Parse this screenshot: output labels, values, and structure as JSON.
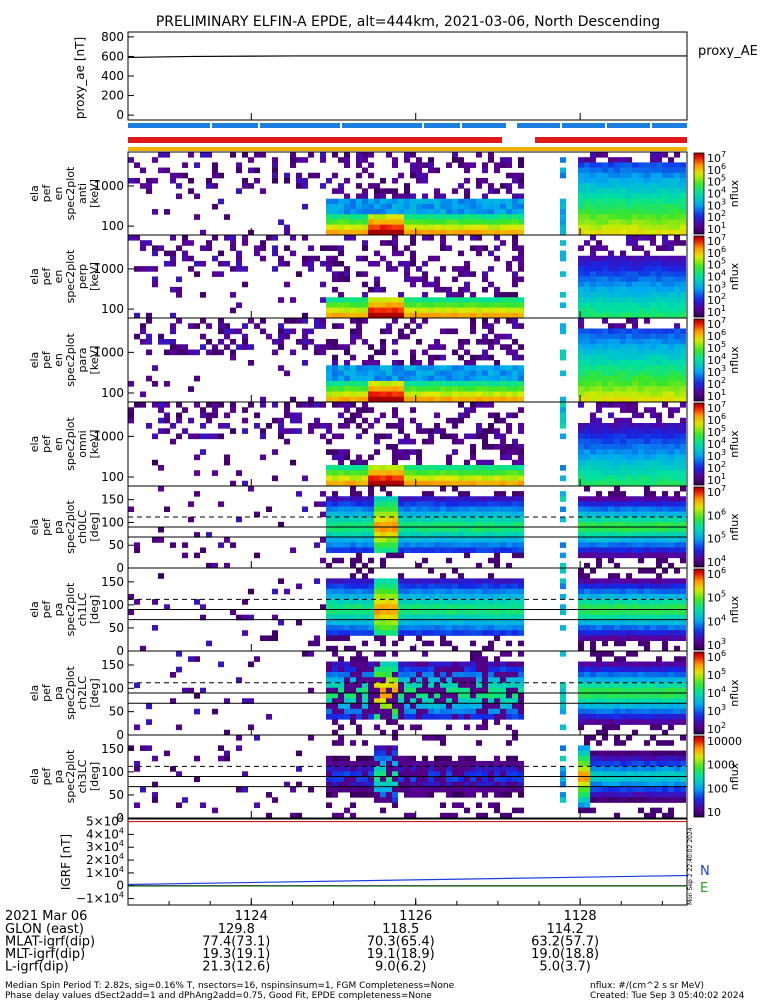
{
  "title": "PRELIMINARY ELFIN-A EPDE, alt=444km, 2021-03-06, North Descending",
  "colors": {
    "quality_bar_blue": "#1a7fe0",
    "quality_bar_red": "#e01a1a",
    "quality_bar_orange": "#f3b000",
    "igrf_n": "#1a3fe0",
    "igrf_e": "#1aa51a",
    "igrf_up": "#d01a1a"
  },
  "time_axis": {
    "date_label": "2021 Mar 06",
    "ticks": [
      "1124",
      "1126",
      "1128"
    ],
    "rows": [
      {
        "label": "GLON (east)",
        "values": [
          "129.8",
          "118.5",
          "114.2"
        ]
      },
      {
        "label": "MLAT-igrf(dip)",
        "values": [
          "77.4(73.1)",
          "70.3(65.4)",
          "63.2(57.7)"
        ]
      },
      {
        "label": "MLT-igrf(dip)",
        "values": [
          "19.3(19.1)",
          "19.1(18.9)",
          "19.0(18.8)"
        ]
      },
      {
        "label": "L-igrf(dip)",
        "values": [
          "21.3(12.6)",
          "9.0(6.2)",
          "5.0(3.7)"
        ]
      }
    ]
  },
  "footer": {
    "left_line1": "Median Spin Period T: 2.82s, sig=0.16% T, nsectors=16, nspinsinsum=1, FGM Completeness=None",
    "left_line2": "Phase delay values dSect2add=1 and dPhAng2add=0.75, Good Fit, EPDE completeness=None",
    "right_line1": "nflux: #/(cm^2 s sr MeV)",
    "right_line2": "Created: Tue Sep  3 05:40:02 2024"
  },
  "vertical_stamp": "Mon Sep  2 22:40:02 2024",
  "chart_data": [
    {
      "type": "line",
      "name": "proxy_ae",
      "ylabel": "proxy_ae [nT]",
      "legend": "proxy_AE",
      "yticks": [
        "800",
        "600",
        "400",
        "200",
        "0"
      ],
      "ylim": [
        -50,
        850
      ],
      "x": [
        1122.5,
        1123.3,
        1124.5,
        1126.0,
        1127.5,
        1129.3
      ],
      "values": [
        590,
        600,
        605,
        605,
        605,
        605
      ]
    },
    {
      "type": "heatmap",
      "ylabel": "ela pef en spec2plot anti [keV]",
      "yscale": "log",
      "yticks": [
        "1000",
        "100"
      ],
      "ylim": [
        60,
        7000
      ],
      "zlabel": "nflux",
      "ztick_exponents": [
        "10",
        "10",
        "10",
        "10",
        "10",
        "10",
        "10"
      ],
      "ztick_powers": [
        "7",
        "6",
        "5",
        "4",
        "3",
        "2",
        "1"
      ]
    },
    {
      "type": "heatmap",
      "ylabel": "ela pef en spec2plot perp [keV]",
      "yscale": "log",
      "yticks": [
        "1000",
        "100"
      ],
      "ylim": [
        60,
        7000
      ],
      "zlabel": "nflux",
      "ztick_exponents": [
        "10",
        "10",
        "10",
        "10",
        "10",
        "10",
        "10"
      ],
      "ztick_powers": [
        "7",
        "6",
        "5",
        "4",
        "3",
        "2",
        "1"
      ]
    },
    {
      "type": "heatmap",
      "ylabel": "ela pef en spec2plot para [keV]",
      "yscale": "log",
      "yticks": [
        "1000",
        "100"
      ],
      "ylim": [
        60,
        7000
      ],
      "zlabel": "nflux",
      "ztick_exponents": [
        "10",
        "10",
        "10",
        "10",
        "10",
        "10",
        "10"
      ],
      "ztick_powers": [
        "7",
        "6",
        "5",
        "4",
        "3",
        "2",
        "1"
      ]
    },
    {
      "type": "heatmap",
      "ylabel": "ela pef en spec2plot omni [keV]",
      "yscale": "log",
      "yticks": [
        "1000",
        "100"
      ],
      "ylim": [
        60,
        7000
      ],
      "zlabel": "nflux",
      "ztick_exponents": [
        "10",
        "10",
        "10",
        "10",
        "10",
        "10",
        "10"
      ],
      "ztick_powers": [
        "7",
        "6",
        "5",
        "4",
        "3",
        "2",
        "1"
      ]
    },
    {
      "type": "heatmap",
      "ylabel": "ela pef pa spec2plot ch0LC [deg]",
      "yticks": [
        "150",
        "100",
        "50",
        "0"
      ],
      "ylim": [
        0,
        180
      ],
      "zlabel": "nflux",
      "ztick_exponents": [
        "10",
        "10",
        "10",
        "10"
      ],
      "ztick_powers": [
        "7",
        "6",
        "5",
        "4"
      ]
    },
    {
      "type": "heatmap",
      "ylabel": "ela pef pa spec2plot ch1LC [deg]",
      "yticks": [
        "150",
        "100",
        "50",
        "0"
      ],
      "ylim": [
        0,
        180
      ],
      "zlabel": "nflux",
      "ztick_exponents": [
        "10",
        "10",
        "10",
        "10"
      ],
      "ztick_powers": [
        "6",
        "5",
        "4",
        "3"
      ]
    },
    {
      "type": "heatmap",
      "ylabel": "ela pef pa spec2plot ch2LC [deg]",
      "yticks": [
        "150",
        "100",
        "50",
        "0"
      ],
      "ylim": [
        0,
        180
      ],
      "zlabel": "nflux",
      "ztick_exponents": [
        "10",
        "10",
        "10",
        "10",
        "10"
      ],
      "ztick_powers": [
        "6",
        "5",
        "4",
        "3",
        "2"
      ]
    },
    {
      "type": "heatmap",
      "ylabel": "ela pef pa spec2plot ch3LC [deg]",
      "yticks": [
        "150",
        "100",
        "50",
        "0"
      ],
      "ylim": [
        0,
        180
      ],
      "zlabel": "nflux",
      "zticks_plain": [
        "10000",
        "1000",
        "100",
        "10"
      ]
    },
    {
      "type": "line",
      "name": "igrf",
      "ylabel": "IGRF [nT]",
      "yticks": [
        {
          "m": "5",
          "e": "4"
        },
        {
          "m": "4",
          "e": "4"
        },
        {
          "m": "3",
          "e": "4"
        },
        {
          "m": "2",
          "e": "4"
        },
        {
          "m": "1",
          "e": "4"
        },
        {
          "m": "0",
          "e": ""
        },
        {
          "m": "−1",
          "e": "4"
        }
      ],
      "ylim": [
        -15000,
        52000
      ],
      "x": [
        1122.5,
        1129.3
      ],
      "series": [
        {
          "name": "N",
          "values": [
            1000,
            8000
          ]
        },
        {
          "name": "E",
          "values": [
            -200,
            -200
          ]
        },
        {
          "name": "",
          "values": [
            50000,
            50000
          ]
        }
      ]
    }
  ]
}
